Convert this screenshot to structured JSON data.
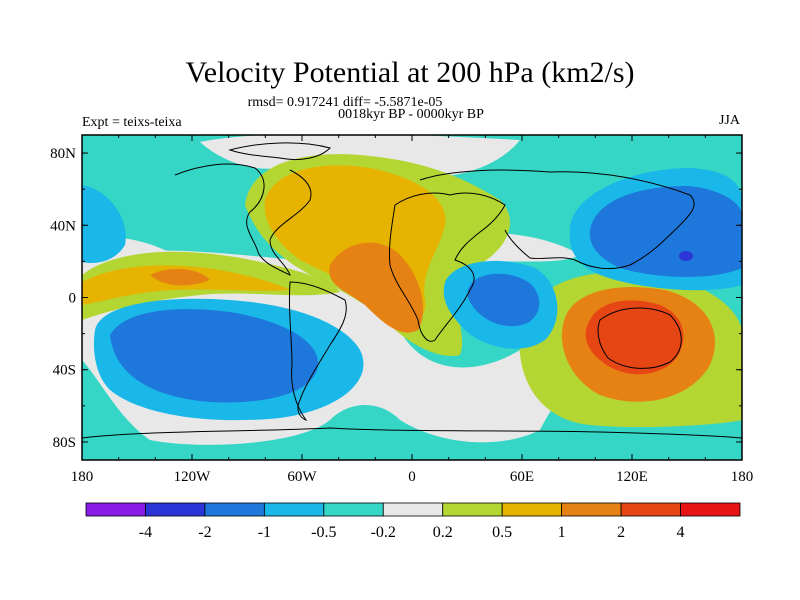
{
  "chart_data": {
    "type": "heatmap",
    "title": "Velocity Potential at 200 hPa (km2/s)",
    "stats_line": "rmsd= 0.917241 diff= -5.5871e-05",
    "left_label": "Expt = teixs-teixa",
    "center_label": "0018kyr BP - 0000kyr BP",
    "right_label": "JJA",
    "x_ticks": [
      "180",
      "120W",
      "60W",
      "0",
      "60E",
      "120E",
      "180"
    ],
    "x_tick_values": [
      -180,
      -120,
      -60,
      0,
      60,
      120,
      180
    ],
    "y_ticks": [
      "80N",
      "40N",
      "0",
      "40S",
      "80S"
    ],
    "y_tick_values": [
      80,
      40,
      0,
      -40,
      -80
    ],
    "xlim": [
      -180,
      180
    ],
    "ylim": [
      -90,
      90
    ],
    "colorbar": {
      "labels": [
        "-4",
        "-2",
        "-1",
        "-0.5",
        "-0.2",
        "0.2",
        "0.5",
        "1",
        "2",
        "4"
      ],
      "colors": [
        "#8a1ae6",
        "#2b35d6",
        "#1e78dc",
        "#1ab8e8",
        "#36d6c6",
        "#e8e8e8",
        "#b4d632",
        "#e6b400",
        "#e68214",
        "#e64614",
        "#e61414"
      ]
    },
    "field_regions": [
      {
        "name": "east-pacific-south-low",
        "lon": -130,
        "lat": -22,
        "value": -1.5
      },
      {
        "name": "south-atlantic-low",
        "lon": 20,
        "lat": -30,
        "value": -0.3
      },
      {
        "name": "west-pacific-north-low",
        "lon": 150,
        "lat": 35,
        "value": -1.5
      },
      {
        "name": "indian-ocean-low",
        "lon": 55,
        "lat": -5,
        "value": -0.8
      },
      {
        "name": "atlantic-high",
        "lon": -20,
        "lat": 10,
        "value": 1.2
      },
      {
        "name": "australia-high",
        "lon": 125,
        "lat": -25,
        "value": 2.5
      },
      {
        "name": "pacific-band-high",
        "lon": -160,
        "lat": 5,
        "value": 1.1
      }
    ]
  }
}
